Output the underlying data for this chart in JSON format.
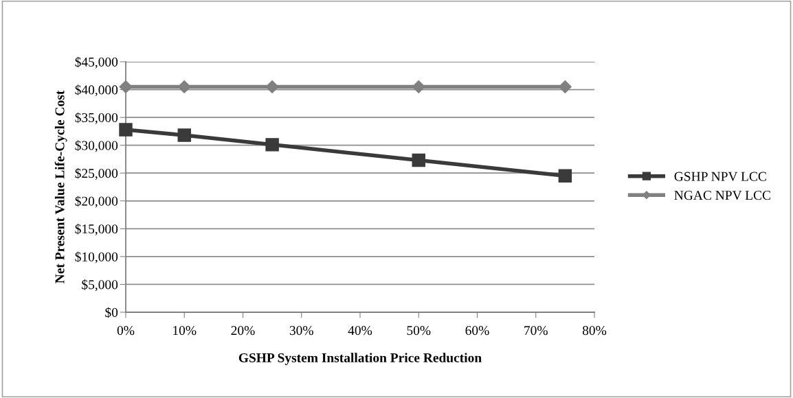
{
  "chart_data": {
    "type": "line",
    "xlabel": "GSHP System Installation Price Reduction",
    "ylabel": "Net Present Value Life-Cycle Cost",
    "x": [
      0,
      10,
      25,
      50,
      75
    ],
    "series": [
      {
        "name": "GSHP NPV LCC",
        "color": "#3a3a3a",
        "marker": "square",
        "values": [
          32800,
          31800,
          30100,
          27300,
          24500
        ]
      },
      {
        "name": "NGAC NPV LCC",
        "color": "#808080",
        "marker": "diamond",
        "values": [
          40500,
          40500,
          40500,
          40500,
          40500
        ]
      }
    ],
    "xlim": [
      0,
      80
    ],
    "xticks": [
      {
        "value": 0,
        "label": "0%"
      },
      {
        "value": 10,
        "label": "10%"
      },
      {
        "value": 20,
        "label": "20%"
      },
      {
        "value": 30,
        "label": "30%"
      },
      {
        "value": 40,
        "label": "40%"
      },
      {
        "value": 50,
        "label": "50%"
      },
      {
        "value": 60,
        "label": "60%"
      },
      {
        "value": 70,
        "label": "70%"
      },
      {
        "value": 80,
        "label": "80%"
      }
    ],
    "ylim": [
      0,
      45000
    ],
    "yticks": [
      {
        "value": 0,
        "label": "$0"
      },
      {
        "value": 5000,
        "label": "$5,000"
      },
      {
        "value": 10000,
        "label": "$10,000"
      },
      {
        "value": 15000,
        "label": "$15,000"
      },
      {
        "value": 20000,
        "label": "$20,000"
      },
      {
        "value": 25000,
        "label": "$25,000"
      },
      {
        "value": 30000,
        "label": "$30,000"
      },
      {
        "value": 35000,
        "label": "$35,000"
      },
      {
        "value": 40000,
        "label": "$40,000"
      },
      {
        "value": 45000,
        "label": "$45,000"
      }
    ],
    "grid": "y",
    "legend": "right",
    "line_style": "solid"
  }
}
